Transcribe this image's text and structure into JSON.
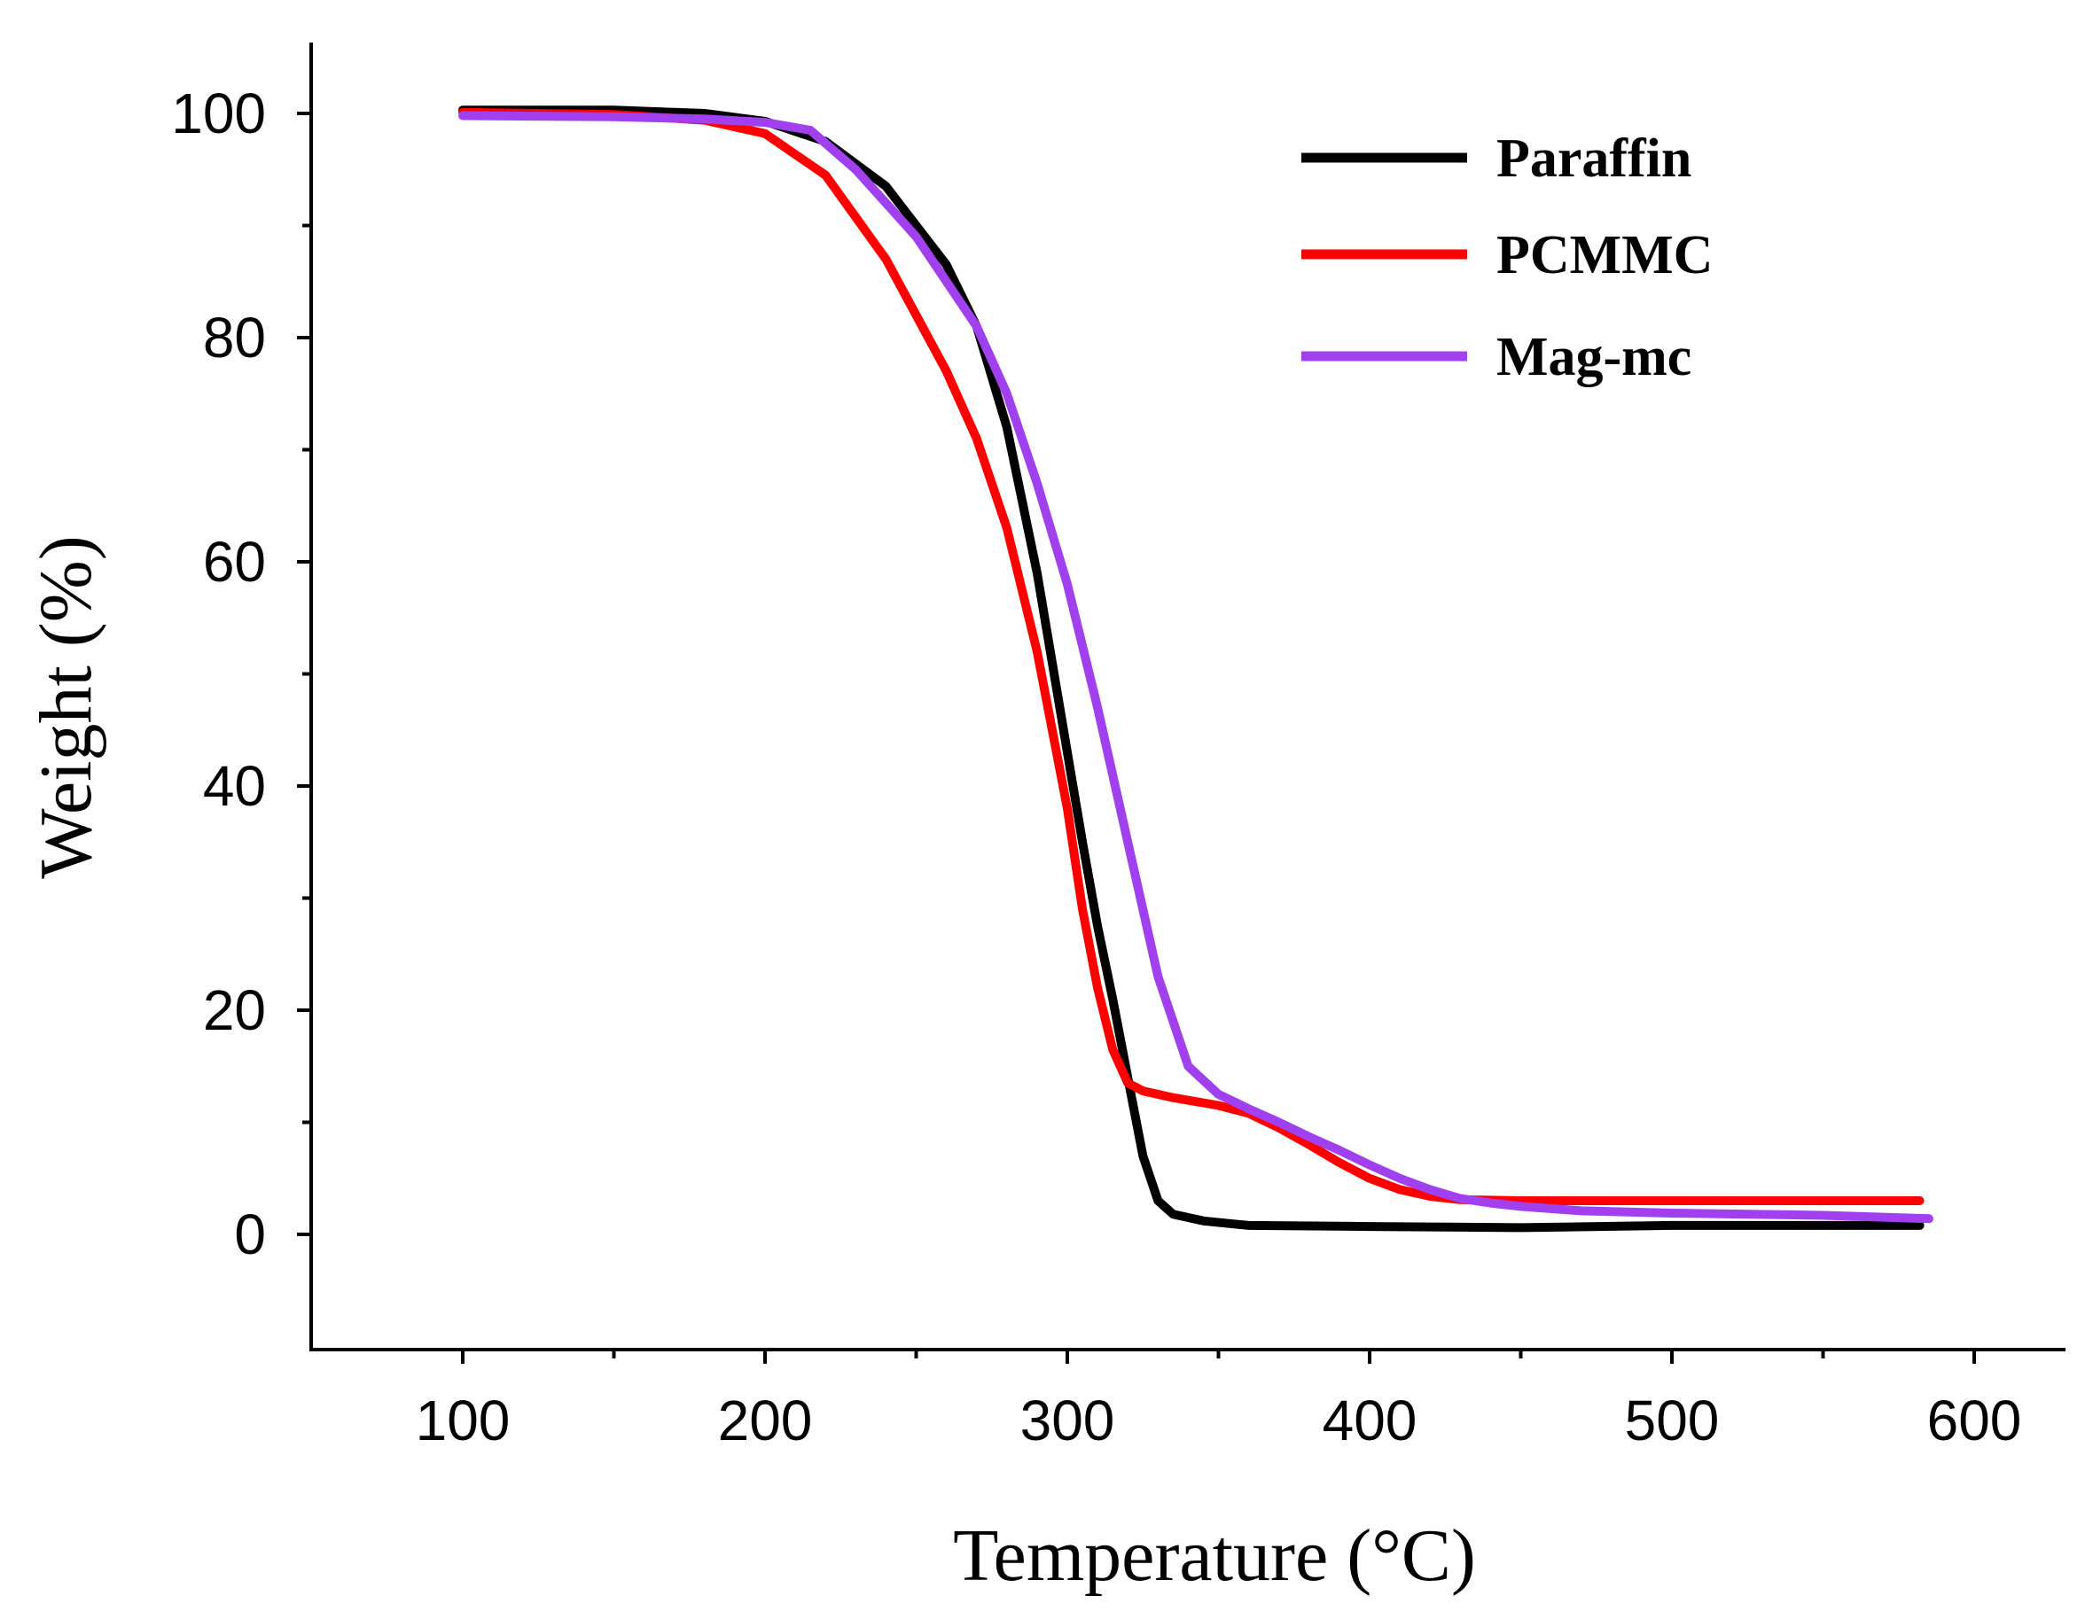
{
  "chart_data": {
    "type": "line",
    "title": "",
    "xlabel": "Temperature (°C)",
    "ylabel": "Weight (%)",
    "xlim": [
      50,
      630
    ],
    "ylim": [
      -10,
      107
    ],
    "xticks": [
      100,
      200,
      300,
      400,
      500,
      600
    ],
    "yticks": [
      0,
      20,
      40,
      60,
      80,
      100
    ],
    "x_minor_step": 50,
    "y_minor_step": 10,
    "grid": false,
    "legend_position": "top-right",
    "series": [
      {
        "name": "Paraffin",
        "color": "#000000",
        "points": [
          [
            100,
            100.3
          ],
          [
            150,
            100.3
          ],
          [
            180,
            100.0
          ],
          [
            200,
            99.3
          ],
          [
            220,
            97.5
          ],
          [
            240,
            93.5
          ],
          [
            260,
            86.5
          ],
          [
            270,
            81
          ],
          [
            280,
            72
          ],
          [
            290,
            59
          ],
          [
            300,
            43
          ],
          [
            305,
            35
          ],
          [
            310,
            27.5
          ],
          [
            315,
            21
          ],
          [
            320,
            14
          ],
          [
            325,
            7
          ],
          [
            330,
            3
          ],
          [
            335,
            1.8
          ],
          [
            345,
            1.2
          ],
          [
            360,
            0.8
          ],
          [
            400,
            0.7
          ],
          [
            450,
            0.6
          ],
          [
            500,
            0.8
          ],
          [
            550,
            0.8
          ],
          [
            582,
            0.8
          ]
        ]
      },
      {
        "name": "PCMMC",
        "color": "#ff0000",
        "points": [
          [
            100,
            100.1
          ],
          [
            150,
            99.9
          ],
          [
            180,
            99.4
          ],
          [
            200,
            98.2
          ],
          [
            220,
            94.5
          ],
          [
            240,
            87
          ],
          [
            260,
            77
          ],
          [
            270,
            71
          ],
          [
            280,
            63
          ],
          [
            290,
            52
          ],
          [
            300,
            38
          ],
          [
            305,
            29
          ],
          [
            310,
            22
          ],
          [
            315,
            16.5
          ],
          [
            320,
            13.5
          ],
          [
            325,
            12.8
          ],
          [
            335,
            12.2
          ],
          [
            350,
            11.5
          ],
          [
            360,
            10.8
          ],
          [
            370,
            9.5
          ],
          [
            380,
            8.0
          ],
          [
            390,
            6.4
          ],
          [
            400,
            5.0
          ],
          [
            410,
            4.0
          ],
          [
            420,
            3.4
          ],
          [
            430,
            3.1
          ],
          [
            450,
            3.0
          ],
          [
            500,
            3.0
          ],
          [
            550,
            3.0
          ],
          [
            582,
            3.0
          ]
        ]
      },
      {
        "name": "Mag-mc",
        "color": "#a040ee",
        "points": [
          [
            100,
            99.8
          ],
          [
            150,
            99.7
          ],
          [
            180,
            99.5
          ],
          [
            200,
            99.2
          ],
          [
            215,
            98.5
          ],
          [
            230,
            95
          ],
          [
            250,
            89
          ],
          [
            270,
            81
          ],
          [
            280,
            75
          ],
          [
            290,
            67
          ],
          [
            300,
            58
          ],
          [
            310,
            47
          ],
          [
            320,
            35
          ],
          [
            330,
            23
          ],
          [
            340,
            15
          ],
          [
            350,
            12.5
          ],
          [
            360,
            11.2
          ],
          [
            370,
            10.0
          ],
          [
            380,
            8.7
          ],
          [
            390,
            7.5
          ],
          [
            400,
            6.2
          ],
          [
            410,
            5.0
          ],
          [
            420,
            4.0
          ],
          [
            430,
            3.2
          ],
          [
            440,
            2.8
          ],
          [
            450,
            2.5
          ],
          [
            470,
            2.1
          ],
          [
            500,
            1.9
          ],
          [
            550,
            1.7
          ],
          [
            585,
            1.4
          ]
        ]
      }
    ]
  }
}
